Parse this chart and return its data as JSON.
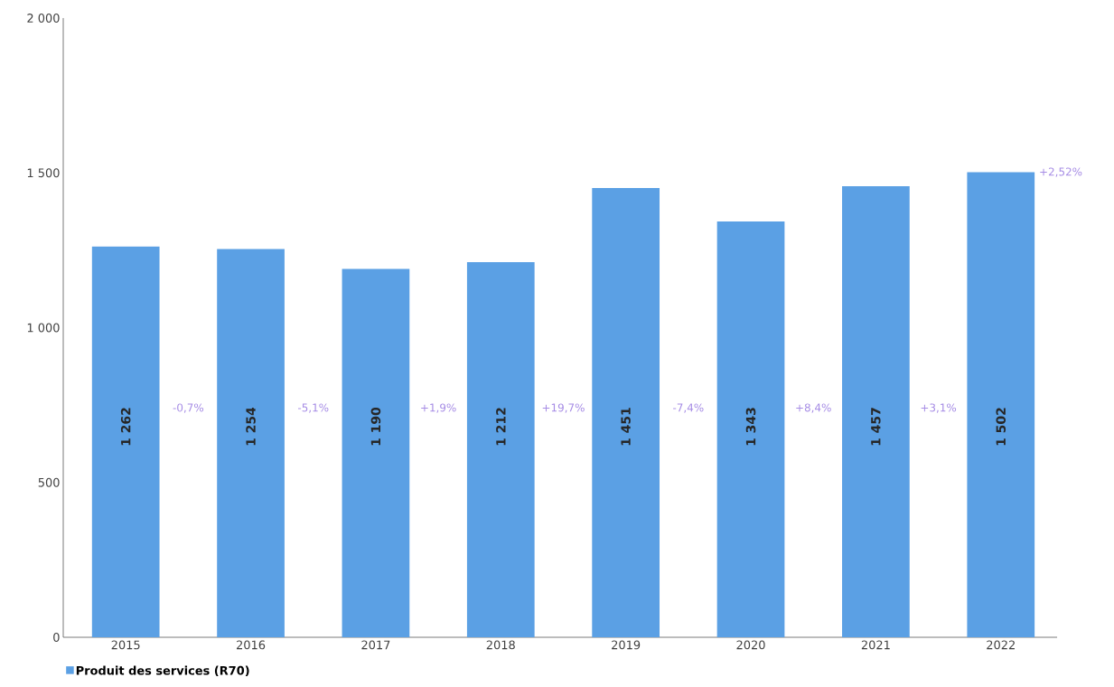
{
  "chart_data": {
    "type": "bar",
    "categories": [
      "2015",
      "2016",
      "2017",
      "2018",
      "2019",
      "2020",
      "2021",
      "2022"
    ],
    "series": [
      {
        "name": "Produit des services (R70)",
        "color": "#5ba0e4",
        "values": [
          1262,
          1254,
          1190,
          1212,
          1451,
          1343,
          1457,
          1502
        ],
        "value_labels": [
          "1 262",
          "1 254",
          "1 190",
          "1 212",
          "1 451",
          "1 343",
          "1 457",
          "1 502"
        ]
      }
    ],
    "annotations": [
      "-0,7%",
      "-5,1%",
      "+1,9%",
      "+19,7%",
      "-7,4%",
      "+8,4%",
      "+3,1%",
      "+2,52%"
    ],
    "ylim": [
      0,
      2000
    ],
    "yticks": [
      {
        "value": 0,
        "label": "0"
      },
      {
        "value": 500,
        "label": "500"
      },
      {
        "value": 1000,
        "label": "1 000"
      },
      {
        "value": 1500,
        "label": "1 500"
      },
      {
        "value": 2000,
        "label": "2 000"
      }
    ],
    "grid": false,
    "legend": "bottom left"
  }
}
